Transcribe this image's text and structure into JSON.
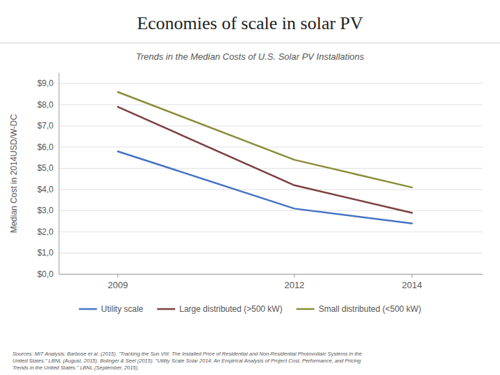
{
  "chart_data": {
    "type": "line",
    "title": "Economies of scale in solar PV",
    "subtitle": "Trends in the Median Costs of U.S. Solar PV Installations",
    "y_label": "Median Cost in 2014USD/W-DC",
    "x": [
      2009,
      2012,
      2014
    ],
    "series": [
      {
        "name": "Utility scale",
        "color": "#4472C4",
        "values": [
          5.8,
          3.1,
          2.4
        ]
      },
      {
        "name": "Large distributed (>500 kW)",
        "color": "#7B3F3F",
        "values": [
          7.9,
          4.2,
          2.9
        ]
      },
      {
        "name": "Small distributed (<500 kW)",
        "color": "#8B8B3A",
        "values": [
          8.6,
          5.4,
          4.1
        ]
      }
    ],
    "xlim": [
      2008.0,
      2015.2
    ],
    "xticks": [
      2009,
      2012,
      2014
    ],
    "ylim": [
      0,
      9.5
    ],
    "yticks": [
      {
        "value": 0.0,
        "label": "$0,0"
      },
      {
        "value": 1.0,
        "label": "$1,0"
      },
      {
        "value": 2.0,
        "label": "$2,0"
      },
      {
        "value": 3.0,
        "label": "$3,0"
      },
      {
        "value": 4.0,
        "label": "$4,0"
      },
      {
        "value": 5.0,
        "label": "$5,0"
      },
      {
        "value": 6.0,
        "label": "$6,0"
      },
      {
        "value": 7.0,
        "label": "$7,0"
      },
      {
        "value": 8.0,
        "label": "$8,0"
      },
      {
        "value": 9.0,
        "label": "$9,0"
      }
    ],
    "grid": true,
    "legend": "bottom",
    "source": "Sources: MIT Analysis; Barbose et al. (2015).  \"Tracking the Sun VIII: The Installed Price of Residential and Non-Residential Photovoltaic Systems in the\nUnited States.\" LBNL (August, 2015). Bolinger & Seel (2015). \"Utility Scale Solar 2014: An Empirical Analysis of Project Cost, Performance, and Pricing\nTrends in the United States.\" LBNL (September, 2015)."
  }
}
